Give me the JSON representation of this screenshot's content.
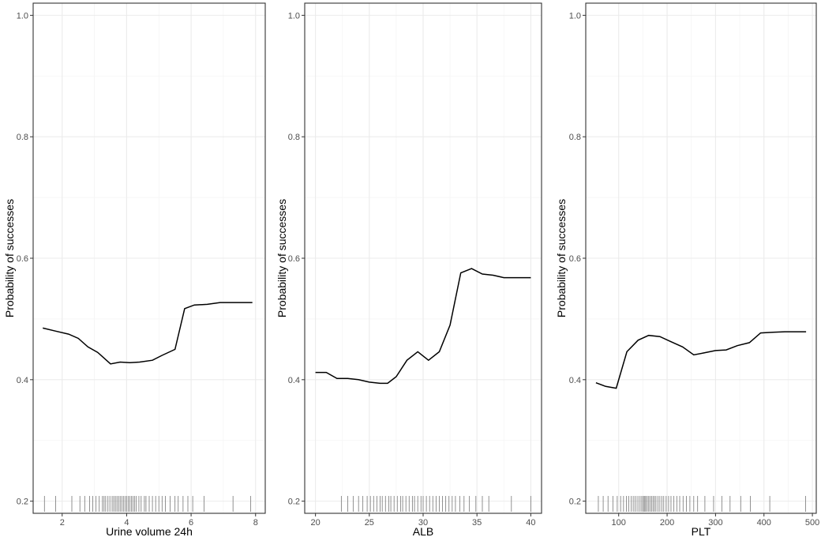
{
  "colors": {
    "background": "#ffffff",
    "panel_border": "#333333",
    "grid_major": "#ebebeb",
    "grid_minor": "#f5f5f5",
    "line": "#000000",
    "rug": "#777777",
    "tick_text": "#4d4d4d"
  },
  "chart_data": [
    {
      "type": "line",
      "xlabel": "Urine volume 24h",
      "ylabel": "Probability of successes",
      "xlim": [
        1.1,
        8.3
      ],
      "ylim": [
        0.18,
        1.02
      ],
      "grid": true,
      "x_ticks": [
        2,
        4,
        6,
        8
      ],
      "x_tick_labels": [
        "2",
        "4",
        "6",
        "8"
      ],
      "y_ticks": [
        0.2,
        0.4,
        0.6,
        0.8,
        1.0
      ],
      "y_tick_labels": [
        "0.2",
        "0.4",
        "0.6",
        "0.8",
        "1.0"
      ],
      "x": [
        1.4,
        1.8,
        2.2,
        2.5,
        2.8,
        3.1,
        3.5,
        3.8,
        4.1,
        4.4,
        4.8,
        5.1,
        5.5,
        5.8,
        6.1,
        6.5,
        6.9,
        7.3,
        7.9
      ],
      "y": [
        0.485,
        0.48,
        0.475,
        0.468,
        0.454,
        0.445,
        0.426,
        0.429,
        0.428,
        0.429,
        0.432,
        0.44,
        0.45,
        0.517,
        0.523,
        0.524,
        0.527,
        0.527,
        0.527
      ],
      "rug": [
        1.45,
        1.8,
        2.3,
        2.55,
        2.7,
        2.85,
        2.95,
        3.05,
        3.15,
        3.25,
        3.3,
        3.35,
        3.42,
        3.48,
        3.55,
        3.6,
        3.65,
        3.7,
        3.75,
        3.8,
        3.85,
        3.9,
        3.95,
        4.0,
        4.05,
        4.1,
        4.15,
        4.2,
        4.25,
        4.3,
        4.38,
        4.45,
        4.55,
        4.6,
        4.7,
        4.8,
        4.9,
        5.0,
        5.1,
        5.2,
        5.35,
        5.5,
        5.6,
        5.75,
        5.9,
        6.05,
        6.4,
        7.3,
        7.85
      ]
    },
    {
      "type": "line",
      "xlabel": "ALB",
      "ylabel": "Probability of successes",
      "xlim": [
        19.0,
        41.0
      ],
      "ylim": [
        0.18,
        1.02
      ],
      "grid": true,
      "x_ticks": [
        20,
        25,
        30,
        35,
        40
      ],
      "x_tick_labels": [
        "20",
        "25",
        "30",
        "35",
        "40"
      ],
      "y_ticks": [
        0.2,
        0.4,
        0.6,
        0.8,
        1.0
      ],
      "y_tick_labels": [
        "0.2",
        "0.4",
        "0.6",
        "0.8",
        "1.0"
      ],
      "x": [
        20,
        21,
        22,
        23,
        24,
        25,
        26,
        26.7,
        27.5,
        28.5,
        29.5,
        30.5,
        31.5,
        32.5,
        33.5,
        34.5,
        35.5,
        36.5,
        37.5,
        38.5,
        40
      ],
      "y": [
        0.412,
        0.412,
        0.402,
        0.402,
        0.4,
        0.396,
        0.394,
        0.394,
        0.405,
        0.432,
        0.446,
        0.432,
        0.446,
        0.49,
        0.576,
        0.583,
        0.574,
        0.572,
        0.568,
        0.568,
        0.568
      ],
      "rug": [
        22.4,
        23.0,
        23.5,
        24.0,
        24.4,
        24.8,
        25.1,
        25.4,
        25.7,
        26.0,
        26.2,
        26.5,
        26.8,
        27.0,
        27.3,
        27.6,
        27.9,
        28.1,
        28.4,
        28.7,
        29.0,
        29.2,
        29.5,
        29.8,
        30.0,
        30.3,
        30.6,
        30.9,
        31.2,
        31.5,
        31.8,
        32.1,
        32.4,
        32.7,
        33.0,
        33.4,
        33.8,
        34.3,
        34.9,
        35.5,
        36.1,
        38.2,
        40.0
      ]
    },
    {
      "type": "line",
      "xlabel": "PLT",
      "ylabel": "Probability of successes",
      "xlim": [
        32,
        508
      ],
      "ylim": [
        0.18,
        1.02
      ],
      "grid": true,
      "x_ticks": [
        100,
        200,
        300,
        400,
        500
      ],
      "x_tick_labels": [
        "100",
        "200",
        "300",
        "400",
        "500"
      ],
      "y_ticks": [
        0.2,
        0.4,
        0.6,
        0.8,
        1.0
      ],
      "y_tick_labels": [
        "0.2",
        "0.4",
        "0.6",
        "0.8",
        "1.0"
      ],
      "x": [
        53,
        73,
        95,
        117,
        140,
        162,
        185,
        207,
        232,
        255,
        275,
        300,
        322,
        345,
        370,
        393,
        418,
        443,
        487
      ],
      "y": [
        0.395,
        0.389,
        0.386,
        0.446,
        0.465,
        0.473,
        0.471,
        0.463,
        0.454,
        0.441,
        0.444,
        0.448,
        0.449,
        0.456,
        0.461,
        0.477,
        0.478,
        0.479,
        0.479
      ],
      "rug": [
        58,
        68,
        78,
        88,
        97,
        104,
        110,
        116,
        121,
        126,
        130,
        134,
        138,
        142,
        146,
        149,
        152,
        154,
        156,
        159,
        162,
        165,
        168,
        171,
        174,
        177,
        181,
        185,
        189,
        193,
        198,
        203,
        208,
        214,
        220,
        226,
        233,
        240,
        247,
        255,
        263,
        278,
        296,
        313,
        330,
        352,
        372,
        412,
        486
      ]
    }
  ]
}
